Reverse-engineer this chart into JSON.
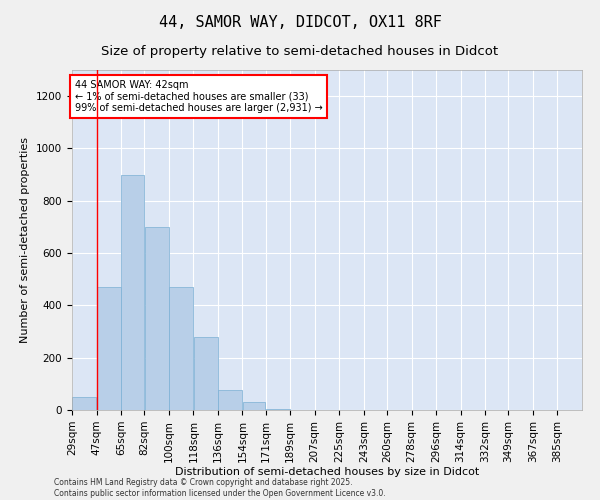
{
  "title": "44, SAMOR WAY, DIDCOT, OX11 8RF",
  "subtitle": "Size of property relative to semi-detached houses in Didcot",
  "xlabel": "Distribution of semi-detached houses by size in Didcot",
  "ylabel": "Number of semi-detached properties",
  "bar_color": "#b8cfe8",
  "bar_edge_color": "#7aafd4",
  "background_color": "#dce6f5",
  "fig_background": "#f0f0f0",
  "annotation_text": "44 SAMOR WAY: 42sqm\n← 1% of semi-detached houses are smaller (33)\n99% of semi-detached houses are larger (2,931) →",
  "vline_x": 47,
  "categories": [
    "29sqm",
    "47sqm",
    "65sqm",
    "82sqm",
    "100sqm",
    "118sqm",
    "136sqm",
    "154sqm",
    "171sqm",
    "189sqm",
    "207sqm",
    "225sqm",
    "243sqm",
    "260sqm",
    "278sqm",
    "296sqm",
    "314sqm",
    "332sqm",
    "349sqm",
    "367sqm",
    "385sqm"
  ],
  "bin_edges": [
    29,
    47,
    65,
    82,
    100,
    118,
    136,
    154,
    171,
    189,
    207,
    225,
    243,
    260,
    278,
    296,
    314,
    332,
    349,
    367,
    385
  ],
  "values": [
    50,
    470,
    900,
    700,
    470,
    280,
    75,
    30,
    5,
    0,
    0,
    0,
    0,
    0,
    0,
    0,
    0,
    0,
    0,
    0
  ],
  "ylim": [
    0,
    1300
  ],
  "yticks": [
    0,
    200,
    400,
    600,
    800,
    1000,
    1200
  ],
  "footer_line1": "Contains HM Land Registry data © Crown copyright and database right 2025.",
  "footer_line2": "Contains public sector information licensed under the Open Government Licence v3.0.",
  "title_fontsize": 11,
  "subtitle_fontsize": 9.5,
  "axis_label_fontsize": 8,
  "tick_fontsize": 7.5
}
